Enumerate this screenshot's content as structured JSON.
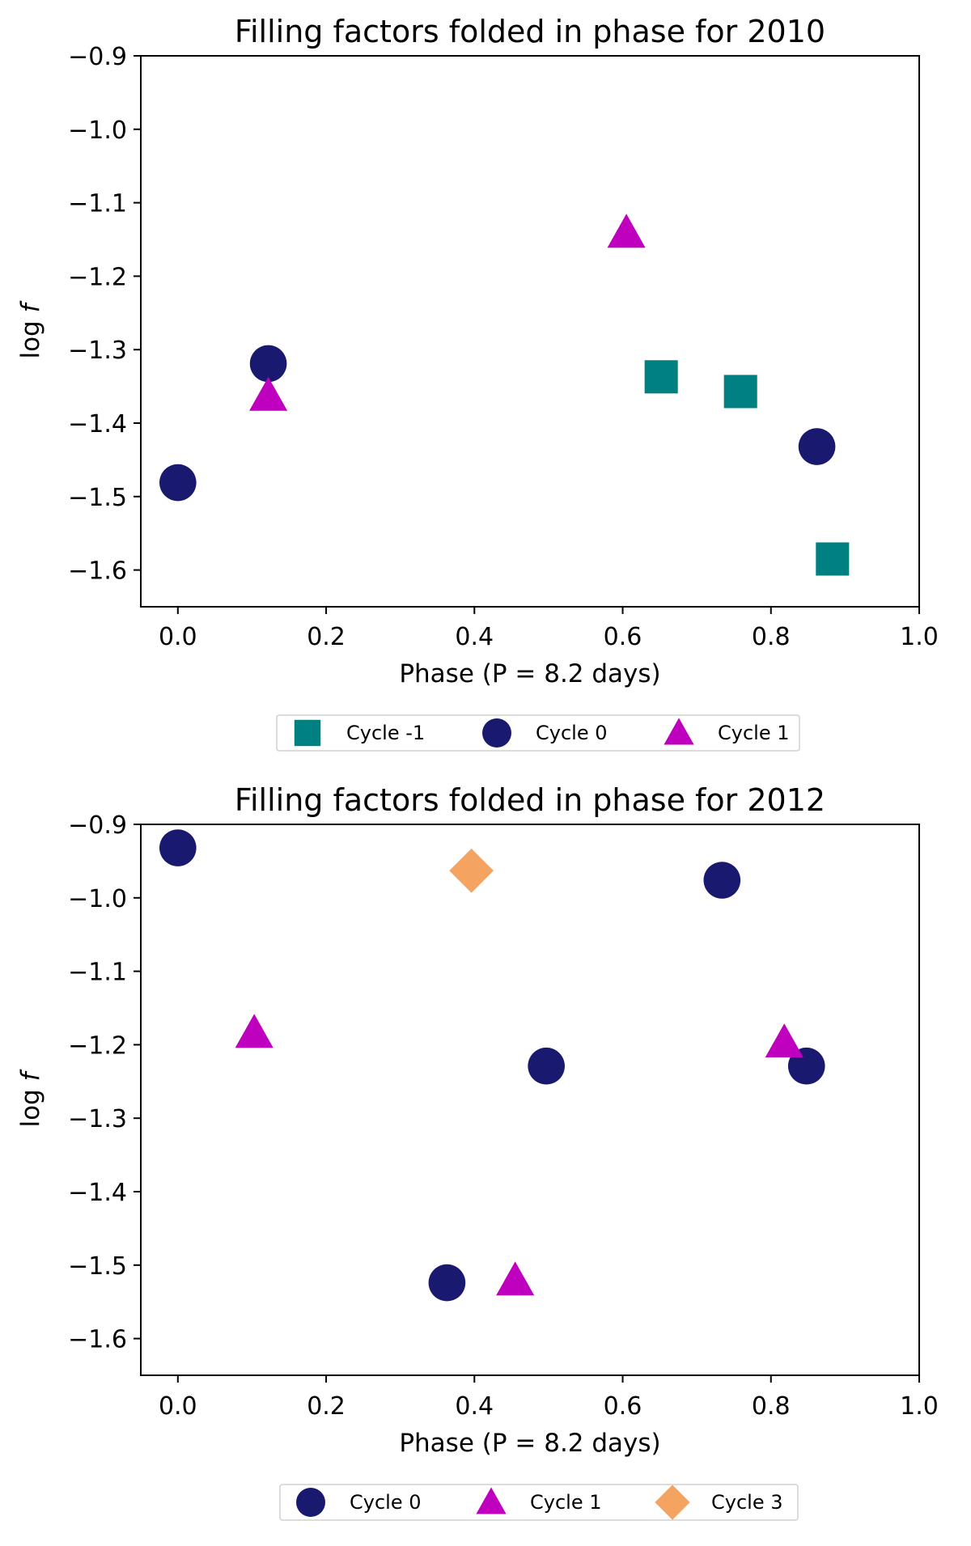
{
  "chart_data": [
    {
      "type": "scatter",
      "title": "Filling factors folded in phase for 2010",
      "xlabel": "Phase (P = 8.2 days)",
      "ylabel_prefix": "log ",
      "ylabel_var": "f",
      "xlim": [
        -0.05,
        1.0
      ],
      "ylim": [
        -1.65,
        -0.9
      ],
      "xticks": [
        0.0,
        0.2,
        0.4,
        0.6,
        0.8,
        1.0
      ],
      "xtick_labels": [
        "0.0",
        "0.2",
        "0.4",
        "0.6",
        "0.8",
        "1.0"
      ],
      "yticks": [
        -0.9,
        -1.0,
        -1.1,
        -1.2,
        -1.3,
        -1.4,
        -1.5,
        -1.6
      ],
      "ytick_labels": [
        "−0.9",
        "−1.0",
        "−1.1",
        "−1.2",
        "−1.3",
        "−1.4",
        "−1.5",
        "−1.6"
      ],
      "grid": false,
      "legend_position": "bottom-center",
      "series": [
        {
          "name": "Cycle -1",
          "marker": "square",
          "color": "#008080",
          "x": [
            0.652,
            0.759,
            0.883
          ],
          "y": [
            -1.337,
            -1.357,
            -1.585
          ]
        },
        {
          "name": "Cycle 0",
          "marker": "circle",
          "color": "#191970",
          "x": [
            0.0,
            0.122,
            0.862
          ],
          "y": [
            -1.481,
            -1.319,
            -1.432
          ]
        },
        {
          "name": "Cycle 1",
          "marker": "triangle",
          "color": "#BF00BF",
          "x": [
            0.122,
            0.605
          ],
          "y": [
            -1.363,
            -1.141
          ]
        }
      ]
    },
    {
      "type": "scatter",
      "title": "Filling factors folded in phase for 2012",
      "xlabel": "Phase (P = 8.2 days)",
      "ylabel_prefix": "log ",
      "ylabel_var": "f",
      "xlim": [
        -0.05,
        1.0
      ],
      "ylim": [
        -1.65,
        -0.9
      ],
      "xticks": [
        0.0,
        0.2,
        0.4,
        0.6,
        0.8,
        1.0
      ],
      "xtick_labels": [
        "0.0",
        "0.2",
        "0.4",
        "0.6",
        "0.8",
        "1.0"
      ],
      "yticks": [
        -0.9,
        -1.0,
        -1.1,
        -1.2,
        -1.3,
        -1.4,
        -1.5,
        -1.6
      ],
      "ytick_labels": [
        "−0.9",
        "−1.0",
        "−1.1",
        "−1.2",
        "−1.3",
        "−1.4",
        "−1.5",
        "−1.6"
      ],
      "grid": false,
      "legend_position": "bottom-center",
      "series": [
        {
          "name": "Cycle 0",
          "marker": "circle",
          "color": "#191970",
          "x": [
            0.0,
            0.363,
            0.497,
            0.734,
            0.848
          ],
          "y": [
            -0.932,
            -1.524,
            -1.229,
            -0.976,
            -1.229
          ]
        },
        {
          "name": "Cycle 1",
          "marker": "triangle",
          "color": "#BF00BF",
          "x": [
            0.103,
            0.455,
            0.818
          ],
          "y": [
            -1.184,
            -1.521,
            -1.197
          ]
        },
        {
          "name": "Cycle 3",
          "marker": "diamond",
          "color": "#F4A460",
          "x": [
            0.396
          ],
          "y": [
            -0.963
          ]
        }
      ]
    }
  ]
}
